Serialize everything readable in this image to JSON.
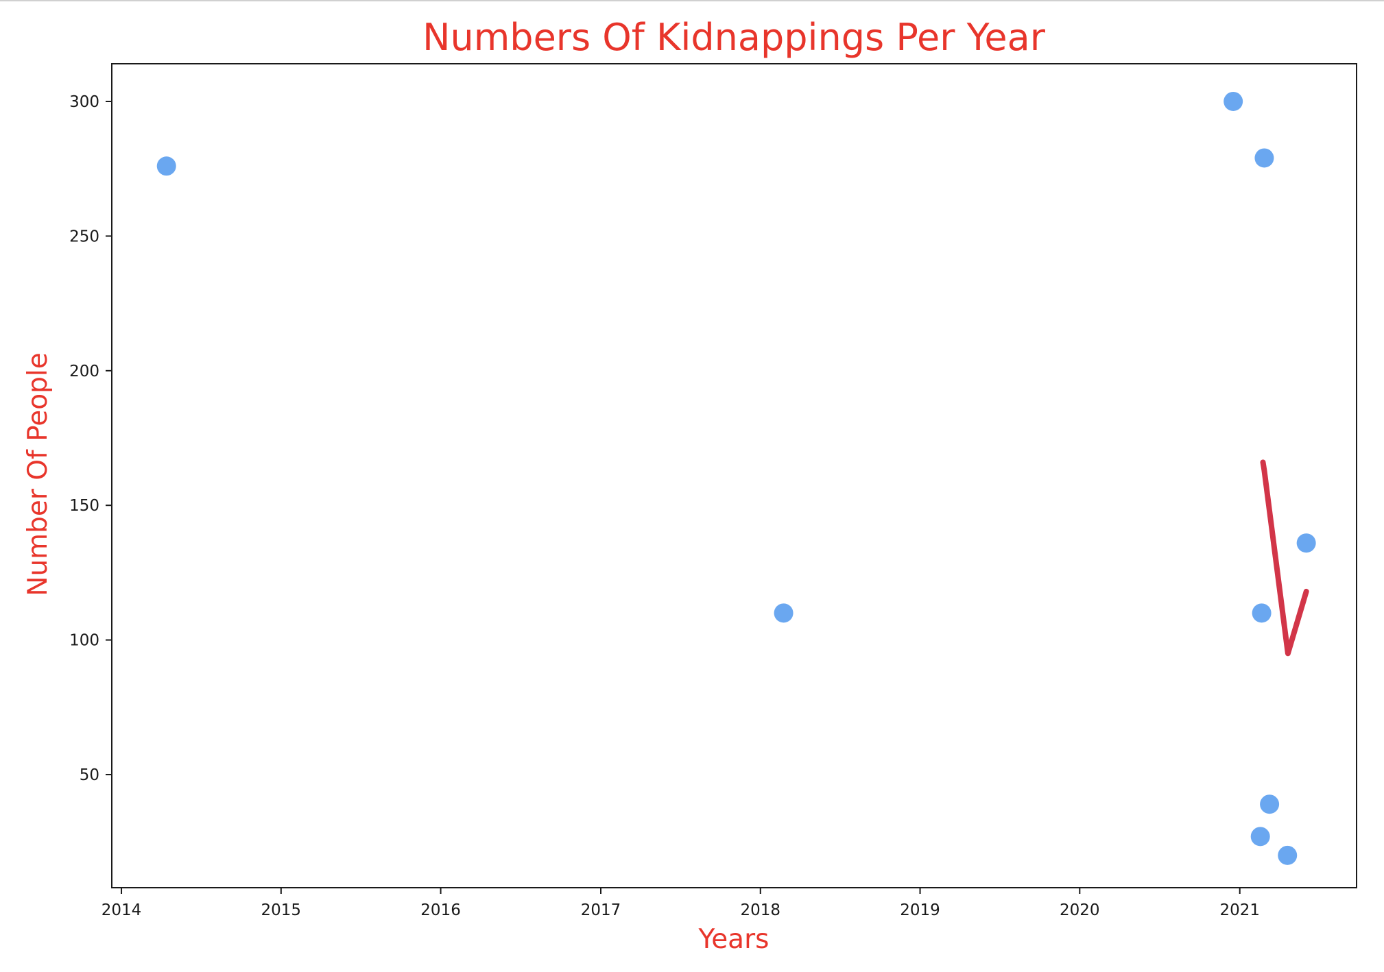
{
  "chart_data": {
    "type": "scatter",
    "title": "Numbers Of Kidnappings Per Year",
    "xlabel": "Years",
    "ylabel": "Number Of People",
    "x_axis_type": "date",
    "xlim": [
      "2013-12-10",
      "2021-09-25"
    ],
    "ylim": [
      8,
      314
    ],
    "xticks": [
      "2014",
      "2015",
      "2016",
      "2017",
      "2018",
      "2019",
      "2020",
      "2021"
    ],
    "yticks": [
      50,
      100,
      150,
      200,
      250,
      300
    ],
    "grid": false,
    "points": [
      {
        "x": "2014-04-14",
        "y": 276
      },
      {
        "x": "2018-02-23",
        "y": 110
      },
      {
        "x": "2020-12-17",
        "y": 300
      },
      {
        "x": "2021-02-17",
        "y": 27
      },
      {
        "x": "2021-02-20",
        "y": 110
      },
      {
        "x": "2021-02-26",
        "y": 279
      },
      {
        "x": "2021-03-10",
        "y": 39
      },
      {
        "x": "2021-04-20",
        "y": 20
      },
      {
        "x": "2021-06-02",
        "y": 136
      }
    ],
    "annotation_path": [
      {
        "x": "2021-02-23",
        "y": 166
      },
      {
        "x": "2021-02-26",
        "y": 163
      },
      {
        "x": "2021-04-21",
        "y": 95
      },
      {
        "x": "2021-06-02",
        "y": 118
      }
    ],
    "colors": {
      "marker": "#6aa7f0",
      "title": "#e8352b",
      "axis_labels": "#e8352b",
      "annotation": "#d23548",
      "axes": "#1a1a1a"
    }
  }
}
